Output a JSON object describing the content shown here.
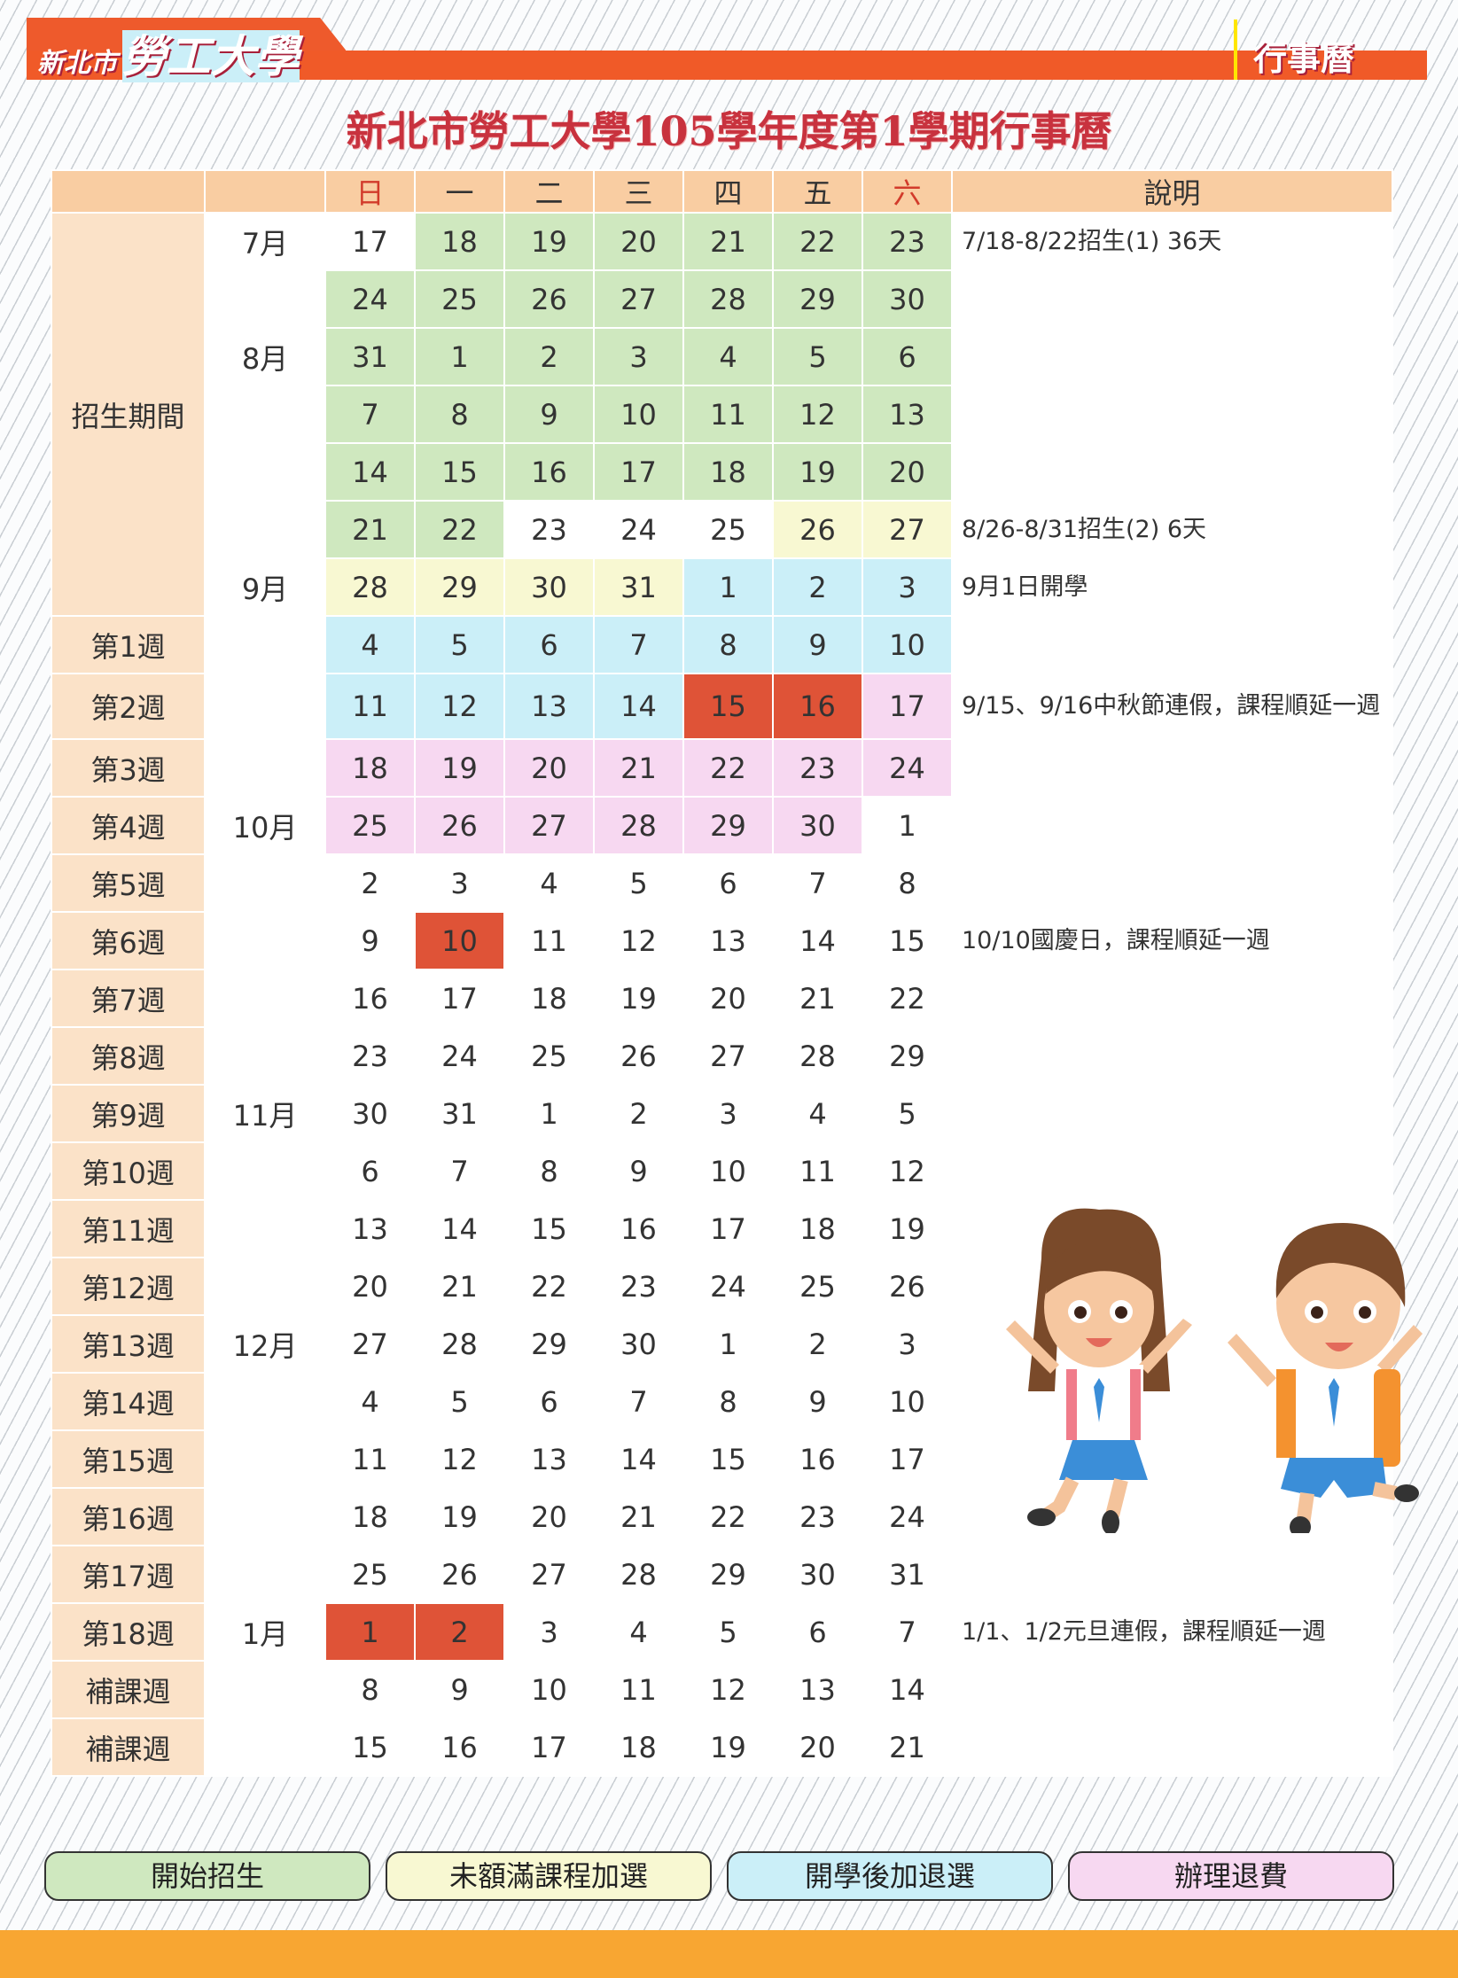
{
  "header": {
    "brand_small": "新北市",
    "brand_big": "勞工大學",
    "section": "行事曆"
  },
  "title": "新北市勞工大學105學年度第1學期行事曆",
  "columns": {
    "blank1": "",
    "blank2": "",
    "days": [
      "日",
      "一",
      "二",
      "三",
      "四",
      "五",
      "六"
    ],
    "desc": "說明"
  },
  "colors": {
    "g": "#cfe8bf",
    "y": "#f8f8d2",
    "b": "#cbeff8",
    "p": "#f7d8f1",
    "r": "#df5337"
  },
  "group_label": "招生期間",
  "rows": [
    {
      "label": "",
      "month": "7月",
      "days": [
        "17",
        "18",
        "19",
        "20",
        "21",
        "22",
        "23"
      ],
      "colors": [
        "",
        "g",
        "g",
        "g",
        "g",
        "g",
        "g"
      ],
      "desc": "7/18-8/22招生(1) 36天"
    },
    {
      "label": "",
      "month": "",
      "days": [
        "24",
        "25",
        "26",
        "27",
        "28",
        "29",
        "30"
      ],
      "colors": [
        "g",
        "g",
        "g",
        "g",
        "g",
        "g",
        "g"
      ],
      "desc": ""
    },
    {
      "label": "",
      "month": "8月",
      "days": [
        "31",
        "1",
        "2",
        "3",
        "4",
        "5",
        "6"
      ],
      "colors": [
        "g",
        "g",
        "g",
        "g",
        "g",
        "g",
        "g"
      ],
      "desc": ""
    },
    {
      "label": "",
      "month": "",
      "days": [
        "7",
        "8",
        "9",
        "10",
        "11",
        "12",
        "13"
      ],
      "colors": [
        "g",
        "g",
        "g",
        "g",
        "g",
        "g",
        "g"
      ],
      "desc": ""
    },
    {
      "label": "",
      "month": "",
      "days": [
        "14",
        "15",
        "16",
        "17",
        "18",
        "19",
        "20"
      ],
      "colors": [
        "g",
        "g",
        "g",
        "g",
        "g",
        "g",
        "g"
      ],
      "desc": ""
    },
    {
      "label": "",
      "month": "",
      "days": [
        "21",
        "22",
        "23",
        "24",
        "25",
        "26",
        "27"
      ],
      "colors": [
        "g",
        "g",
        "",
        "",
        "",
        "y",
        "y"
      ],
      "desc": "8/26-8/31招生(2) 6天"
    },
    {
      "label": "",
      "month": "9月",
      "days": [
        "28",
        "29",
        "30",
        "31",
        "1",
        "2",
        "3"
      ],
      "colors": [
        "y",
        "y",
        "y",
        "y",
        "b",
        "b",
        "b"
      ],
      "desc": "9月1日開學"
    },
    {
      "label": "第1週",
      "month": "",
      "days": [
        "4",
        "5",
        "6",
        "7",
        "8",
        "9",
        "10"
      ],
      "colors": [
        "b",
        "b",
        "b",
        "b",
        "b",
        "b",
        "b"
      ],
      "desc": ""
    },
    {
      "label": "第2週",
      "month": "",
      "days": [
        "11",
        "12",
        "13",
        "14",
        "15",
        "16",
        "17"
      ],
      "colors": [
        "b",
        "b",
        "b",
        "b",
        "r",
        "r",
        "p"
      ],
      "desc": "9/15、9/16中秋節連假，課程順延一週"
    },
    {
      "label": "第3週",
      "month": "",
      "days": [
        "18",
        "19",
        "20",
        "21",
        "22",
        "23",
        "24"
      ],
      "colors": [
        "p",
        "p",
        "p",
        "p",
        "p",
        "p",
        "p"
      ],
      "desc": ""
    },
    {
      "label": "第4週",
      "month": "10月",
      "days": [
        "25",
        "26",
        "27",
        "28",
        "29",
        "30",
        "1"
      ],
      "colors": [
        "p",
        "p",
        "p",
        "p",
        "p",
        "p",
        ""
      ],
      "desc": ""
    },
    {
      "label": "第5週",
      "month": "",
      "days": [
        "2",
        "3",
        "4",
        "5",
        "6",
        "7",
        "8"
      ],
      "colors": [
        "",
        "",
        "",
        "",
        "",
        "",
        ""
      ],
      "desc": ""
    },
    {
      "label": "第6週",
      "month": "",
      "days": [
        "9",
        "10",
        "11",
        "12",
        "13",
        "14",
        "15"
      ],
      "colors": [
        "",
        "r",
        "",
        "",
        "",
        "",
        ""
      ],
      "desc": "10/10國慶日，課程順延一週"
    },
    {
      "label": "第7週",
      "month": "",
      "days": [
        "16",
        "17",
        "18",
        "19",
        "20",
        "21",
        "22"
      ],
      "colors": [
        "",
        "",
        "",
        "",
        "",
        "",
        ""
      ],
      "desc": ""
    },
    {
      "label": "第8週",
      "month": "",
      "days": [
        "23",
        "24",
        "25",
        "26",
        "27",
        "28",
        "29"
      ],
      "colors": [
        "",
        "",
        "",
        "",
        "",
        "",
        ""
      ],
      "desc": ""
    },
    {
      "label": "第9週",
      "month": "11月",
      "days": [
        "30",
        "31",
        "1",
        "2",
        "3",
        "4",
        "5"
      ],
      "colors": [
        "",
        "",
        "",
        "",
        "",
        "",
        ""
      ],
      "desc": ""
    },
    {
      "label": "第10週",
      "month": "",
      "days": [
        "6",
        "7",
        "8",
        "9",
        "10",
        "11",
        "12"
      ],
      "colors": [
        "",
        "",
        "",
        "",
        "",
        "",
        ""
      ],
      "desc": ""
    },
    {
      "label": "第11週",
      "month": "",
      "days": [
        "13",
        "14",
        "15",
        "16",
        "17",
        "18",
        "19"
      ],
      "colors": [
        "",
        "",
        "",
        "",
        "",
        "",
        ""
      ],
      "desc": ""
    },
    {
      "label": "第12週",
      "month": "",
      "days": [
        "20",
        "21",
        "22",
        "23",
        "24",
        "25",
        "26"
      ],
      "colors": [
        "",
        "",
        "",
        "",
        "",
        "",
        ""
      ],
      "desc": ""
    },
    {
      "label": "第13週",
      "month": "12月",
      "days": [
        "27",
        "28",
        "29",
        "30",
        "1",
        "2",
        "3"
      ],
      "colors": [
        "",
        "",
        "",
        "",
        "",
        "",
        ""
      ],
      "desc": ""
    },
    {
      "label": "第14週",
      "month": "",
      "days": [
        "4",
        "5",
        "6",
        "7",
        "8",
        "9",
        "10"
      ],
      "colors": [
        "",
        "",
        "",
        "",
        "",
        "",
        ""
      ],
      "desc": ""
    },
    {
      "label": "第15週",
      "month": "",
      "days": [
        "11",
        "12",
        "13",
        "14",
        "15",
        "16",
        "17"
      ],
      "colors": [
        "",
        "",
        "",
        "",
        "",
        "",
        ""
      ],
      "desc": ""
    },
    {
      "label": "第16週",
      "month": "",
      "days": [
        "18",
        "19",
        "20",
        "21",
        "22",
        "23",
        "24"
      ],
      "colors": [
        "",
        "",
        "",
        "",
        "",
        "",
        ""
      ],
      "desc": ""
    },
    {
      "label": "第17週",
      "month": "",
      "days": [
        "25",
        "26",
        "27",
        "28",
        "29",
        "30",
        "31"
      ],
      "colors": [
        "",
        "",
        "",
        "",
        "",
        "",
        ""
      ],
      "desc": ""
    },
    {
      "label": "第18週",
      "month": "1月",
      "days": [
        "1",
        "2",
        "3",
        "4",
        "5",
        "6",
        "7"
      ],
      "colors": [
        "r",
        "r",
        "",
        "",
        "",
        "",
        ""
      ],
      "desc": "1/1、1/2元旦連假，課程順延一週"
    },
    {
      "label": "補課週",
      "month": "",
      "days": [
        "8",
        "9",
        "10",
        "11",
        "12",
        "13",
        "14"
      ],
      "colors": [
        "",
        "",
        "",
        "",
        "",
        "",
        ""
      ],
      "desc": ""
    },
    {
      "label": "補課週",
      "month": "",
      "days": [
        "15",
        "16",
        "17",
        "18",
        "19",
        "20",
        "21"
      ],
      "colors": [
        "",
        "",
        "",
        "",
        "",
        "",
        ""
      ],
      "desc": ""
    }
  ],
  "legend": [
    {
      "label": "開始招生",
      "color": "#cfe8bf"
    },
    {
      "label": "未額滿課程加選",
      "color": "#f8f8d2"
    },
    {
      "label": "開學後加退選",
      "color": "#cbeff8"
    },
    {
      "label": "辦理退費",
      "color": "#f7d8f1"
    }
  ],
  "illustration": "two-jumping-students"
}
